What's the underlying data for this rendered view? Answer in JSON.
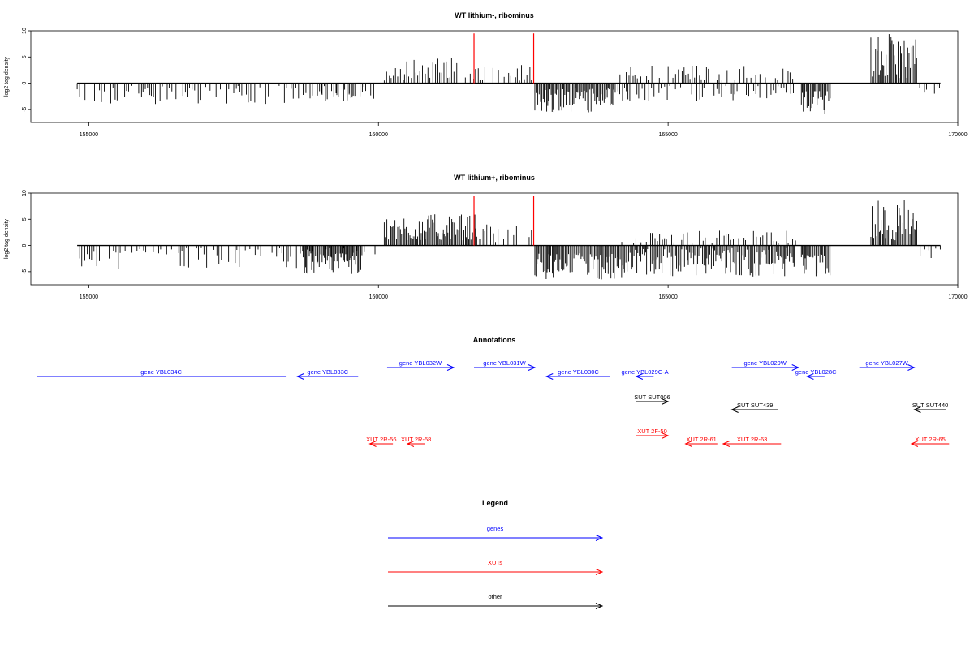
{
  "panels": [
    {
      "title": "WT lithium-, ribominus",
      "ylabel": "log2 tag density",
      "yticks": [
        10,
        5,
        0,
        -5
      ],
      "xticks": [
        155000,
        160000,
        165000,
        170000
      ]
    },
    {
      "title": "WT lithium+, ribominus",
      "ylabel": "log2 tag density",
      "yticks": [
        10,
        5,
        0,
        -5
      ],
      "xticks": [
        155000,
        160000,
        165000,
        170000
      ]
    }
  ],
  "annotations_title": "Annotations",
  "features": [
    {
      "label": "gene YBL034C",
      "start": 154100,
      "end": 158400,
      "strand": "-",
      "type": "gene",
      "row": 1,
      "arrow": false
    },
    {
      "label": "gene YBL033C",
      "start": 158600,
      "end": 159650,
      "strand": "-",
      "type": "gene",
      "row": 1,
      "arrow": true
    },
    {
      "label": "gene YBL032W",
      "start": 160150,
      "end": 161300,
      "strand": "+",
      "type": "gene",
      "row": 0,
      "arrow": true
    },
    {
      "label": "gene YBL031W",
      "start": 161650,
      "end": 162700,
      "strand": "+",
      "type": "gene",
      "row": 0,
      "arrow": true
    },
    {
      "label": "gene YBL030C",
      "start": 162900,
      "end": 164000,
      "strand": "-",
      "type": "gene",
      "row": 1,
      "arrow": true
    },
    {
      "label": "gene YBL029C-A",
      "start": 164450,
      "end": 164750,
      "strand": "-",
      "type": "gene",
      "row": 1,
      "arrow": true
    },
    {
      "label": "gene YBL029W",
      "start": 166100,
      "end": 167250,
      "strand": "+",
      "type": "gene",
      "row": 0,
      "arrow": true
    },
    {
      "label": "gene YBL028C",
      "start": 167400,
      "end": 167700,
      "strand": "-",
      "type": "gene",
      "row": 1,
      "arrow": true
    },
    {
      "label": "gene YBL027W",
      "start": 168300,
      "end": 169250,
      "strand": "+",
      "type": "gene",
      "row": 0,
      "arrow": true
    },
    {
      "label": "SUT SUT006",
      "start": 164450,
      "end": 165000,
      "strand": "+",
      "type": "other",
      "row": 2,
      "arrow": true
    },
    {
      "label": "SUT SUT439",
      "start": 166100,
      "end": 166900,
      "strand": "-",
      "type": "other",
      "row": 3,
      "arrow": true
    },
    {
      "label": "SUT SUT440",
      "start": 169250,
      "end": 169800,
      "strand": "-",
      "type": "other",
      "row": 3,
      "arrow": true
    },
    {
      "label": "XUT 2F-50",
      "start": 164450,
      "end": 165000,
      "strand": "+",
      "type": "xut",
      "row": 4,
      "arrow": true
    },
    {
      "label": "XUT 2R-56",
      "start": 159850,
      "end": 160250,
      "strand": "-",
      "type": "xut",
      "row": 5,
      "arrow": true
    },
    {
      "label": "XUT 2R-58",
      "start": 160500,
      "end": 160800,
      "strand": "-",
      "type": "xut",
      "row": 5,
      "arrow": true
    },
    {
      "label": "XUT 2R-61",
      "start": 165300,
      "end": 165850,
      "strand": "-",
      "type": "xut",
      "row": 5,
      "arrow": true
    },
    {
      "label": "XUT 2R-63",
      "start": 165950,
      "end": 166950,
      "strand": "-",
      "type": "xut",
      "row": 5,
      "arrow": true
    },
    {
      "label": "XUT 2R-65",
      "start": 169200,
      "end": 169850,
      "strand": "-",
      "type": "xut",
      "row": 5,
      "arrow": true
    }
  ],
  "legend": {
    "title": "Legend",
    "items": [
      {
        "label": "genes",
        "type": "gene"
      },
      {
        "label": "XUTs",
        "type": "xut"
      },
      {
        "label": "other",
        "type": "other"
      }
    ]
  },
  "colors": {
    "gene": "#0000ff",
    "xut": "#ff0000",
    "other": "#000000",
    "signal": "#000000",
    "marker": "#ff0000"
  },
  "chart_data": [
    {
      "type": "bar",
      "title": "WT lithium-, ribominus",
      "xlabel": "",
      "ylabel": "log2 tag density",
      "xlim": [
        154000,
        170000
      ],
      "ylim": [
        -7.5,
        10
      ],
      "red_markers_x": [
        161650,
        162680
      ],
      "red_marker_height": 9.5,
      "baseline_x_range": [
        154800,
        169700
      ],
      "segments": [
        {
          "x": [
            154800,
            160000
          ],
          "strand": "-",
          "min": 0.5,
          "max": 4.0
        },
        {
          "x": [
            158700,
            159600
          ],
          "strand": "-",
          "min": 1.5,
          "max": 4.0
        },
        {
          "x": [
            160100,
            160450
          ],
          "strand": "+",
          "min": 0.5,
          "max": 3.0
        },
        {
          "x": [
            160450,
            161400
          ],
          "strand": "+",
          "min": 1.0,
          "max": 5.0
        },
        {
          "x": [
            161500,
            162650
          ],
          "strand": "+",
          "min": 0.5,
          "max": 3.5
        },
        {
          "x": [
            162700,
            164100
          ],
          "strand": "-",
          "min": 1.0,
          "max": 6.0
        },
        {
          "x": [
            164100,
            167200
          ],
          "strand": "-",
          "min": 0.5,
          "max": 3.5
        },
        {
          "x": [
            164100,
            167200
          ],
          "strand": "+",
          "min": 0.5,
          "max": 3.5
        },
        {
          "x": [
            167300,
            167800
          ],
          "strand": "-",
          "min": 1.5,
          "max": 6.0
        },
        {
          "x": [
            168500,
            169300
          ],
          "strand": "+",
          "min": 1.0,
          "max": 9.5
        },
        {
          "x": [
            169300,
            169700
          ],
          "strand": "-",
          "min": 0.5,
          "max": 2.5
        }
      ]
    },
    {
      "type": "bar",
      "title": "WT lithium+, ribominus",
      "xlabel": "",
      "ylabel": "log2 tag density",
      "xlim": [
        154000,
        170000
      ],
      "ylim": [
        -7.5,
        10
      ],
      "red_markers_x": [
        161650,
        162680
      ],
      "red_marker_height": 9.5,
      "baseline_x_range": [
        154800,
        169700
      ],
      "segments": [
        {
          "x": [
            154800,
            160000
          ],
          "strand": "-",
          "min": 0.5,
          "max": 4.5
        },
        {
          "x": [
            158700,
            159700
          ],
          "strand": "-",
          "min": 1.5,
          "max": 5.5
        },
        {
          "x": [
            160100,
            161700
          ],
          "strand": "+",
          "min": 1.0,
          "max": 6.0
        },
        {
          "x": [
            161700,
            162650
          ],
          "strand": "+",
          "min": 0.5,
          "max": 4.0
        },
        {
          "x": [
            162700,
            164200
          ],
          "strand": "-",
          "min": 1.5,
          "max": 6.5
        },
        {
          "x": [
            164200,
            167200
          ],
          "strand": "-",
          "min": 0.5,
          "max": 6.0
        },
        {
          "x": [
            164200,
            167200
          ],
          "strand": "+",
          "min": 0.5,
          "max": 3.0
        },
        {
          "x": [
            167300,
            167800
          ],
          "strand": "-",
          "min": 1.5,
          "max": 6.0
        },
        {
          "x": [
            168500,
            169300
          ],
          "strand": "+",
          "min": 1.0,
          "max": 9.0
        },
        {
          "x": [
            169300,
            169700
          ],
          "strand": "-",
          "min": 0.5,
          "max": 3.0
        }
      ]
    }
  ]
}
